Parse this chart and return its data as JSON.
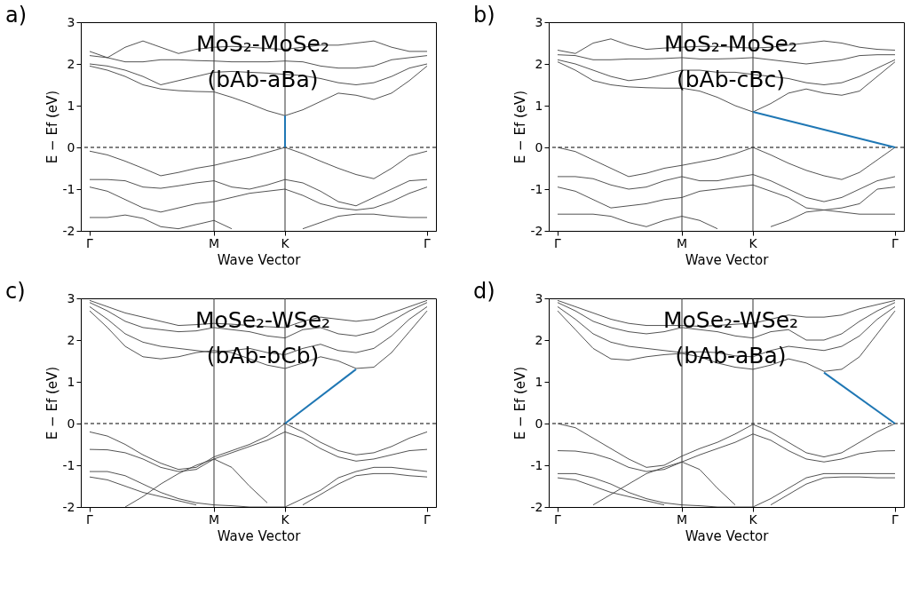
{
  "chart_data": [
    {
      "type": "line",
      "title": "a)",
      "annotations": [
        "MoS₂-MoSe₂",
        "(bAb-aBa)"
      ],
      "xlabel": "Wave Vector",
      "ylabel": "E − Ef (eV)",
      "categories": [
        "Γ",
        null,
        null,
        null,
        null,
        null,
        null,
        "M",
        null,
        null,
        null,
        "K",
        null,
        null,
        null,
        null,
        null,
        null,
        null,
        "Γ"
      ],
      "ylim": [
        -2,
        3
      ],
      "yticks": [
        -2,
        -1,
        0,
        1,
        2,
        3
      ],
      "grid": false,
      "line_style": "solid",
      "ref_lines": [
        {
          "axis": "y",
          "value": 0,
          "label": null,
          "color": "#000000",
          "line_style": "dashed"
        },
        {
          "axis": "x",
          "value": "M",
          "label": null,
          "color": "#333333",
          "line_style": "solid"
        },
        {
          "axis": "x",
          "value": "K",
          "label": null,
          "color": "#333333",
          "line_style": "solid"
        }
      ],
      "series": [
        {
          "color": "#404040",
          "values": [
            -0.09,
            -0.18,
            -0.33,
            -0.5,
            -0.68,
            -0.6,
            -0.5,
            -0.43,
            -0.33,
            -0.24,
            -0.12,
            0,
            -0.15,
            -0.33,
            -0.5,
            -0.65,
            -0.75,
            -0.5,
            -0.2,
            -0.09
          ]
        },
        {
          "color": "#404040",
          "values": [
            -0.77,
            -0.77,
            -0.8,
            -0.95,
            -0.98,
            -0.92,
            -0.85,
            -0.8,
            -0.95,
            -1.0,
            -0.9,
            -0.77,
            -0.85,
            -1.05,
            -1.3,
            -1.4,
            -1.2,
            -1.0,
            -0.8,
            -0.77
          ]
        },
        {
          "color": "#404040",
          "values": [
            -0.95,
            -1.05,
            -1.25,
            -1.45,
            -1.55,
            -1.45,
            -1.35,
            -1.3,
            -1.2,
            -1.1,
            -1.05,
            -1.0,
            -1.15,
            -1.35,
            -1.45,
            -1.5,
            -1.45,
            -1.3,
            -1.1,
            -0.95
          ]
        },
        {
          "color": "#404040",
          "values": [
            -1.68,
            -1.68,
            -1.62,
            -1.7,
            -1.9,
            -1.95,
            -1.85,
            -1.75,
            -1.95,
            null,
            null,
            null,
            null,
            null,
            null,
            null,
            null,
            null,
            null,
            null
          ]
        },
        {
          "color": "#404040",
          "values": [
            null,
            null,
            null,
            null,
            null,
            null,
            null,
            null,
            null,
            null,
            null,
            null,
            -1.95,
            -1.8,
            -1.65,
            -1.6,
            -1.6,
            -1.65,
            -1.68,
            -1.68
          ]
        },
        {
          "color": "#404040",
          "values": [
            1.95,
            1.85,
            1.7,
            1.5,
            1.4,
            1.36,
            1.34,
            1.33,
            1.2,
            1.05,
            0.88,
            0.76,
            0.9,
            1.1,
            1.3,
            1.25,
            1.15,
            1.3,
            1.6,
            1.95
          ]
        },
        {
          "color": "#404040",
          "values": [
            2.0,
            1.95,
            1.85,
            1.7,
            1.5,
            1.6,
            1.7,
            1.8,
            1.82,
            1.8,
            1.78,
            1.75,
            1.72,
            1.65,
            1.55,
            1.5,
            1.55,
            1.7,
            1.9,
            2.0
          ]
        },
        {
          "color": "#404040",
          "values": [
            2.2,
            2.15,
            2.05,
            2.05,
            2.1,
            2.1,
            2.08,
            2.07,
            2.05,
            2.05,
            2.05,
            2.07,
            2.05,
            1.95,
            1.9,
            1.9,
            1.95,
            2.1,
            2.15,
            2.2
          ]
        },
        {
          "color": "#404040",
          "values": [
            2.3,
            2.15,
            2.4,
            2.55,
            2.4,
            2.25,
            2.35,
            2.4,
            2.42,
            2.4,
            2.37,
            2.35,
            2.4,
            2.45,
            2.45,
            2.5,
            2.55,
            2.4,
            2.3,
            2.3
          ]
        },
        {
          "color": "#1f77b4",
          "x": [
            "K",
            "K"
          ],
          "values": [
            0,
            0.76
          ]
        }
      ]
    },
    {
      "type": "line",
      "title": "b)",
      "annotations": [
        "MoS₂-MoSe₂",
        "(bAb-cBc)"
      ],
      "xlabel": "Wave Vector",
      "ylabel": "E − Ef (eV)",
      "categories": [
        "Γ",
        null,
        null,
        null,
        null,
        null,
        null,
        "M",
        null,
        null,
        null,
        "K",
        null,
        null,
        null,
        null,
        null,
        null,
        null,
        "Γ"
      ],
      "ylim": [
        -2,
        3
      ],
      "yticks": [
        -2,
        -1,
        0,
        1,
        2,
        3
      ],
      "grid": false,
      "line_style": "solid",
      "ref_lines": [
        {
          "axis": "y",
          "value": 0,
          "label": null,
          "color": "#000000",
          "line_style": "dashed"
        },
        {
          "axis": "x",
          "value": "M",
          "label": null,
          "color": "#333333",
          "line_style": "solid"
        },
        {
          "axis": "x",
          "value": "K",
          "label": null,
          "color": "#333333",
          "line_style": "solid"
        }
      ],
      "series": [
        {
          "color": "#404040",
          "values": [
            0,
            -0.1,
            -0.3,
            -0.5,
            -0.7,
            -0.62,
            -0.5,
            -0.43,
            -0.35,
            -0.27,
            -0.15,
            0,
            -0.18,
            -0.38,
            -0.55,
            -0.68,
            -0.77,
            -0.6,
            -0.3,
            0
          ]
        },
        {
          "color": "#404040",
          "values": [
            -0.7,
            -0.7,
            -0.75,
            -0.9,
            -1.0,
            -0.95,
            -0.8,
            -0.7,
            -0.8,
            -0.8,
            -0.72,
            -0.65,
            -0.8,
            -1.0,
            -1.2,
            -1.3,
            -1.2,
            -1.0,
            -0.8,
            -0.7
          ]
        },
        {
          "color": "#404040",
          "values": [
            -0.95,
            -1.05,
            -1.25,
            -1.45,
            -1.4,
            -1.35,
            -1.25,
            -1.2,
            -1.05,
            -1.0,
            -0.95,
            -0.9,
            -1.05,
            -1.2,
            -1.45,
            -1.5,
            -1.45,
            -1.35,
            -1.0,
            -0.95
          ]
        },
        {
          "color": "#404040",
          "values": [
            -1.6,
            -1.6,
            -1.6,
            -1.65,
            -1.8,
            -1.9,
            -1.75,
            -1.65,
            -1.75,
            -1.95,
            null,
            null,
            null,
            null,
            null,
            null,
            null,
            null,
            null,
            null
          ]
        },
        {
          "color": "#404040",
          "values": [
            null,
            null,
            null,
            null,
            null,
            null,
            null,
            null,
            null,
            null,
            null,
            null,
            -1.9,
            -1.75,
            -1.55,
            -1.5,
            -1.55,
            -1.6,
            -1.6,
            -1.6
          ]
        },
        {
          "color": "#404040",
          "values": [
            2.05,
            1.85,
            1.6,
            1.5,
            1.45,
            1.43,
            1.42,
            1.42,
            1.35,
            1.2,
            1.0,
            0.85,
            1.05,
            1.3,
            1.4,
            1.3,
            1.25,
            1.35,
            1.7,
            2.05
          ]
        },
        {
          "color": "#404040",
          "values": [
            2.1,
            2.0,
            1.85,
            1.7,
            1.6,
            1.65,
            1.75,
            1.85,
            1.85,
            1.8,
            1.8,
            1.75,
            1.7,
            1.65,
            1.55,
            1.5,
            1.55,
            1.7,
            1.9,
            2.1
          ]
        },
        {
          "color": "#404040",
          "values": [
            2.22,
            2.2,
            2.1,
            2.1,
            2.12,
            2.12,
            2.13,
            2.15,
            2.12,
            2.12,
            2.13,
            2.15,
            2.1,
            2.05,
            2.0,
            2.05,
            2.1,
            2.2,
            2.22,
            2.22
          ]
        },
        {
          "color": "#404040",
          "values": [
            2.33,
            2.25,
            2.5,
            2.6,
            2.45,
            2.35,
            2.38,
            2.4,
            2.42,
            2.42,
            2.4,
            2.38,
            2.4,
            2.45,
            2.5,
            2.55,
            2.5,
            2.4,
            2.35,
            2.33
          ]
        },
        {
          "color": "#1f77b4",
          "values": [
            null,
            null,
            null,
            null,
            null,
            null,
            null,
            null,
            null,
            null,
            null,
            0.85,
            null,
            null,
            null,
            null,
            null,
            null,
            null,
            0
          ]
        }
      ]
    },
    {
      "type": "line",
      "title": "c)",
      "annotations": [
        "MoSe₂-WSe₂",
        "(bAb-bCb)"
      ],
      "xlabel": "Wave Vector",
      "ylabel": "E − Ef (eV)",
      "categories": [
        "Γ",
        null,
        null,
        null,
        null,
        null,
        null,
        "M",
        null,
        null,
        null,
        "K",
        null,
        null,
        null,
        null,
        null,
        null,
        null,
        "Γ"
      ],
      "ylim": [
        -2,
        3
      ],
      "yticks": [
        -2,
        -1,
        0,
        1,
        2,
        3
      ],
      "grid": false,
      "line_style": "solid",
      "ref_lines": [
        {
          "axis": "y",
          "value": 0,
          "label": null,
          "color": "#000000",
          "line_style": "dashed"
        },
        {
          "axis": "x",
          "value": "M",
          "label": null,
          "color": "#333333",
          "line_style": "solid"
        },
        {
          "axis": "x",
          "value": "K",
          "label": null,
          "color": "#333333",
          "line_style": "solid"
        }
      ],
      "series": [
        {
          "color": "#404040",
          "values": [
            -0.2,
            -0.3,
            -0.5,
            -0.75,
            -0.95,
            -1.1,
            -1.05,
            -0.8,
            -0.65,
            -0.5,
            -0.3,
            0,
            -0.2,
            -0.45,
            -0.65,
            -0.75,
            -0.7,
            -0.55,
            -0.35,
            -0.2
          ]
        },
        {
          "color": "#404040",
          "values": [
            -0.62,
            -0.63,
            -0.7,
            -0.85,
            -1.05,
            -1.15,
            -1.1,
            -0.85,
            -0.7,
            -0.55,
            -0.4,
            -0.2,
            -0.35,
            -0.6,
            -0.8,
            -0.9,
            -0.85,
            -0.75,
            -0.65,
            -0.62
          ]
        },
        {
          "color": "#404040",
          "values": [
            -1.15,
            -1.15,
            -1.25,
            -1.45,
            -1.65,
            -1.8,
            -1.9,
            -1.95,
            -1.97,
            -2.0,
            -2.0,
            -2.0,
            -1.8,
            -1.6,
            -1.3,
            -1.15,
            -1.05,
            -1.05,
            -1.1,
            -1.15
          ]
        },
        {
          "color": "#404040",
          "values": [
            -1.28,
            -1.35,
            -1.5,
            -1.65,
            -1.75,
            -1.85,
            -1.95,
            null,
            null,
            null,
            null,
            null,
            null,
            null,
            null,
            null,
            null,
            null,
            null,
            null
          ]
        },
        {
          "color": "#404040",
          "values": [
            null,
            null,
            null,
            null,
            null,
            null,
            null,
            null,
            null,
            null,
            null,
            null,
            -1.95,
            -1.7,
            -1.45,
            -1.25,
            -1.2,
            -1.2,
            -1.25,
            -1.28
          ]
        },
        {
          "color": "#404040",
          "values": [
            null,
            null,
            -2.0,
            -1.75,
            -1.45,
            -1.2,
            -1.0,
            -0.85,
            -1.05,
            -1.5,
            -1.9,
            null,
            null,
            null,
            null,
            null,
            null,
            null,
            null,
            null
          ]
        },
        {
          "color": "#404040",
          "values": [
            2.7,
            2.3,
            1.85,
            1.6,
            1.55,
            1.6,
            1.7,
            1.75,
            1.7,
            1.55,
            1.4,
            1.32,
            1.45,
            1.6,
            1.5,
            1.32,
            1.35,
            1.7,
            2.2,
            2.7
          ]
        },
        {
          "color": "#404040",
          "values": [
            2.8,
            2.5,
            2.15,
            1.95,
            1.85,
            1.8,
            1.75,
            1.7,
            1.75,
            1.8,
            1.7,
            1.65,
            1.8,
            1.9,
            1.75,
            1.7,
            1.8,
            2.1,
            2.5,
            2.8
          ]
        },
        {
          "color": "#404040",
          "values": [
            2.9,
            2.7,
            2.45,
            2.3,
            2.25,
            2.2,
            2.22,
            2.3,
            2.25,
            2.2,
            2.1,
            2.05,
            2.25,
            2.3,
            2.15,
            2.1,
            2.2,
            2.45,
            2.7,
            2.9
          ]
        },
        {
          "color": "#404040",
          "values": [
            2.95,
            2.8,
            2.65,
            2.55,
            2.45,
            2.35,
            2.37,
            2.4,
            2.38,
            2.35,
            2.32,
            2.3,
            2.45,
            2.55,
            2.5,
            2.45,
            2.5,
            2.65,
            2.8,
            2.95
          ]
        },
        {
          "color": "#1f77b4",
          "values": [
            null,
            null,
            null,
            null,
            null,
            null,
            null,
            null,
            null,
            null,
            null,
            0,
            null,
            null,
            null,
            1.3,
            null,
            null,
            null,
            null
          ]
        }
      ]
    },
    {
      "type": "line",
      "title": "d)",
      "annotations": [
        "MoSe₂-WSe₂",
        "(bAb-aBa)"
      ],
      "xlabel": "Wave Vector",
      "ylabel": "E − Ef (eV)",
      "categories": [
        "Γ",
        null,
        null,
        null,
        null,
        null,
        null,
        "M",
        null,
        null,
        null,
        "K",
        null,
        null,
        null,
        null,
        null,
        null,
        null,
        "Γ"
      ],
      "ylim": [
        -2,
        3
      ],
      "yticks": [
        -2,
        -1,
        0,
        1,
        2,
        3
      ],
      "grid": false,
      "line_style": "solid",
      "ref_lines": [
        {
          "axis": "y",
          "value": 0,
          "label": null,
          "color": "#000000",
          "line_style": "dashed"
        },
        {
          "axis": "x",
          "value": "M",
          "label": null,
          "color": "#333333",
          "line_style": "solid"
        },
        {
          "axis": "x",
          "value": "K",
          "label": null,
          "color": "#333333",
          "line_style": "solid"
        }
      ],
      "series": [
        {
          "color": "#404040",
          "values": [
            0,
            -0.1,
            -0.35,
            -0.6,
            -0.85,
            -1.05,
            -1.0,
            -0.78,
            -0.6,
            -0.45,
            -0.25,
            -0.02,
            -0.2,
            -0.45,
            -0.7,
            -0.8,
            -0.7,
            -0.45,
            -0.2,
            0
          ]
        },
        {
          "color": "#404040",
          "values": [
            -0.65,
            -0.66,
            -0.72,
            -0.85,
            -1.05,
            -1.15,
            -1.1,
            -0.92,
            -0.75,
            -0.6,
            -0.45,
            -0.25,
            -0.4,
            -0.65,
            -0.85,
            -0.92,
            -0.85,
            -0.72,
            -0.66,
            -0.65
          ]
        },
        {
          "color": "#404040",
          "values": [
            -1.2,
            -1.2,
            -1.3,
            -1.45,
            -1.65,
            -1.8,
            -1.9,
            -1.95,
            -1.97,
            -2.0,
            -2.0,
            -2.0,
            -1.8,
            -1.55,
            -1.3,
            -1.2,
            -1.2,
            -1.2,
            -1.2,
            -1.2
          ]
        },
        {
          "color": "#404040",
          "values": [
            -1.3,
            -1.35,
            -1.5,
            -1.65,
            -1.75,
            -1.85,
            -1.95,
            null,
            null,
            null,
            null,
            null,
            null,
            null,
            null,
            null,
            null,
            null,
            null,
            null
          ]
        },
        {
          "color": "#404040",
          "values": [
            null,
            null,
            null,
            null,
            null,
            null,
            null,
            null,
            null,
            null,
            null,
            null,
            -1.95,
            -1.7,
            -1.45,
            -1.3,
            -1.28,
            -1.28,
            -1.3,
            -1.3
          ]
        },
        {
          "color": "#404040",
          "values": [
            null,
            null,
            -1.95,
            -1.7,
            -1.45,
            -1.2,
            -1.05,
            -0.92,
            -1.1,
            -1.55,
            -1.95,
            null,
            null,
            null,
            null,
            null,
            null,
            null,
            null,
            null
          ]
        },
        {
          "color": "#404040",
          "values": [
            2.7,
            2.25,
            1.8,
            1.55,
            1.52,
            1.6,
            1.65,
            1.68,
            1.6,
            1.45,
            1.35,
            1.3,
            1.4,
            1.55,
            1.45,
            1.25,
            1.3,
            1.6,
            2.15,
            2.7
          ]
        },
        {
          "color": "#404040",
          "values": [
            2.8,
            2.5,
            2.15,
            1.95,
            1.85,
            1.8,
            1.75,
            1.7,
            1.72,
            1.7,
            1.62,
            1.6,
            1.75,
            1.85,
            1.8,
            1.75,
            1.85,
            2.1,
            2.5,
            2.8
          ]
        },
        {
          "color": "#404040",
          "values": [
            2.9,
            2.7,
            2.45,
            2.3,
            2.2,
            2.15,
            2.2,
            2.3,
            2.25,
            2.2,
            2.1,
            2.05,
            2.2,
            2.25,
            2.0,
            2.0,
            2.15,
            2.45,
            2.7,
            2.9
          ]
        },
        {
          "color": "#404040",
          "values": [
            2.95,
            2.8,
            2.65,
            2.5,
            2.4,
            2.35,
            2.35,
            2.35,
            2.33,
            2.35,
            2.38,
            2.4,
            2.5,
            2.6,
            2.55,
            2.55,
            2.6,
            2.75,
            2.85,
            2.95
          ]
        },
        {
          "color": "#1f77b4",
          "values": [
            null,
            null,
            null,
            null,
            null,
            null,
            null,
            null,
            null,
            null,
            null,
            null,
            null,
            null,
            null,
            1.22,
            null,
            null,
            null,
            0
          ]
        }
      ]
    }
  ]
}
